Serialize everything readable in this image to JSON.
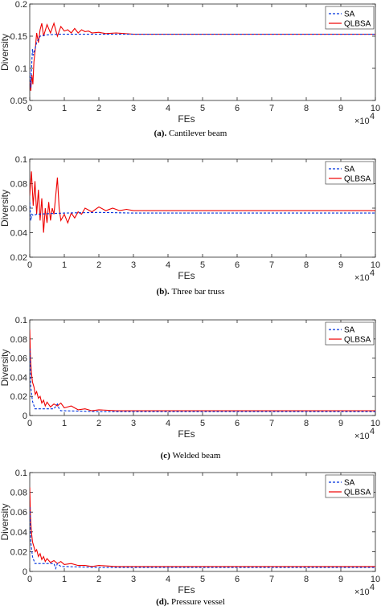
{
  "colors": {
    "sa": "#0033dd",
    "qlbsa": "#ee0000",
    "axis": "#262626"
  },
  "chart_data": [
    {
      "type": "line",
      "caption": "Cantilever beam",
      "caption_label": "(a).",
      "xlabel": "FEs",
      "ylabel": "Diversity",
      "xlim": [
        0,
        100000
      ],
      "ylim": [
        0.05,
        0.2
      ],
      "xticks": [
        0,
        10000,
        20000,
        30000,
        40000,
        50000,
        60000,
        70000,
        80000,
        90000,
        100000
      ],
      "xtick_labels": [
        "0",
        "1",
        "2",
        "3",
        "4",
        "5",
        "6",
        "7",
        "8",
        "9",
        "10"
      ],
      "yticks": [
        0.05,
        0.1,
        0.15,
        0.2
      ],
      "ytick_labels": [
        "0.05",
        "0.1",
        "0.15",
        "0.2"
      ],
      "x_multiplier": "×10",
      "x_multiplier_exp": "4",
      "legend_position": "top-right",
      "series": [
        {
          "name": "SA",
          "style": "dashed",
          "x": [
            0,
            300,
            600,
            800,
            1000,
            1500,
            2000,
            3000,
            5000,
            8000,
            10000,
            20000,
            40000,
            100000
          ],
          "y": [
            0.095,
            0.07,
            0.11,
            0.13,
            0.12,
            0.13,
            0.14,
            0.15,
            0.152,
            0.153,
            0.153,
            0.153,
            0.153,
            0.153
          ]
        },
        {
          "name": "QLBSA",
          "style": "solid",
          "x": [
            0,
            300,
            600,
            900,
            1200,
            1600,
            2000,
            2500,
            3000,
            3500,
            4000,
            5000,
            6000,
            7000,
            8000,
            9000,
            10000,
            11000,
            12000,
            13000,
            14000,
            15000,
            16000,
            17000,
            18000,
            20000,
            22000,
            25000,
            30000,
            40000,
            60000,
            100000
          ],
          "y": [
            0.08,
            0.065,
            0.09,
            0.075,
            0.11,
            0.13,
            0.155,
            0.14,
            0.16,
            0.17,
            0.15,
            0.168,
            0.155,
            0.17,
            0.15,
            0.165,
            0.158,
            0.16,
            0.155,
            0.162,
            0.155,
            0.16,
            0.157,
            0.158,
            0.155,
            0.156,
            0.154,
            0.155,
            0.153,
            0.153,
            0.153,
            0.153
          ]
        }
      ]
    },
    {
      "type": "line",
      "caption": "Three bar truss",
      "caption_label": "(b).",
      "xlabel": "FEs",
      "ylabel": "Diversity",
      "xlim": [
        0,
        100000
      ],
      "ylim": [
        0.02,
        0.1
      ],
      "xticks": [
        0,
        10000,
        20000,
        30000,
        40000,
        50000,
        60000,
        70000,
        80000,
        90000,
        100000
      ],
      "xtick_labels": [
        "0",
        "1",
        "2",
        "3",
        "4",
        "5",
        "6",
        "7",
        "8",
        "9",
        "10"
      ],
      "yticks": [
        0.02,
        0.04,
        0.06,
        0.08,
        0.1
      ],
      "ytick_labels": [
        "0.02",
        "0.04",
        "0.06",
        "0.08",
        "0.1"
      ],
      "x_multiplier": "×10",
      "x_multiplier_exp": "4",
      "legend_position": "top-right",
      "series": [
        {
          "name": "SA",
          "style": "dashed",
          "x": [
            0,
            300,
            600,
            1000,
            2000,
            5000,
            10000,
            20000,
            30000,
            100000
          ],
          "y": [
            0.065,
            0.05,
            0.055,
            0.054,
            0.055,
            0.0555,
            0.056,
            0.0565,
            0.056,
            0.056
          ]
        },
        {
          "name": "QLBSA",
          "style": "solid",
          "x": [
            0,
            500,
            1000,
            1500,
            2000,
            2500,
            3000,
            3500,
            4000,
            4500,
            5000,
            5500,
            6000,
            6500,
            7000,
            7500,
            8000,
            8500,
            9000,
            10000,
            11000,
            12000,
            13000,
            14000,
            15000,
            16000,
            18000,
            20000,
            22000,
            24000,
            26000,
            28000,
            30000,
            40000,
            60000,
            100000
          ],
          "y": [
            0.07,
            0.09,
            0.062,
            0.082,
            0.055,
            0.075,
            0.05,
            0.068,
            0.04,
            0.06,
            0.048,
            0.065,
            0.05,
            0.06,
            0.055,
            0.07,
            0.085,
            0.06,
            0.05,
            0.055,
            0.048,
            0.056,
            0.052,
            0.057,
            0.055,
            0.06,
            0.057,
            0.061,
            0.058,
            0.06,
            0.058,
            0.059,
            0.058,
            0.058,
            0.058,
            0.058
          ]
        }
      ]
    },
    {
      "type": "line",
      "caption": "Welded beam",
      "caption_label": "(c)",
      "xlabel": "FEs",
      "ylabel": "Diversity",
      "xlim": [
        0,
        100000
      ],
      "ylim": [
        0,
        0.1
      ],
      "xticks": [
        0,
        10000,
        20000,
        30000,
        40000,
        50000,
        60000,
        70000,
        80000,
        90000,
        100000
      ],
      "xtick_labels": [
        "0",
        "1",
        "2",
        "3",
        "4",
        "5",
        "6",
        "7",
        "8",
        "9",
        "10"
      ],
      "yticks": [
        0,
        0.02,
        0.04,
        0.06,
        0.08,
        0.1
      ],
      "ytick_labels": [
        "0",
        "0.02",
        "0.04",
        "0.06",
        "0.08",
        "0.1"
      ],
      "x_multiplier": "×10",
      "x_multiplier_exp": "4",
      "legend_position": "top-right",
      "series": [
        {
          "name": "SA",
          "style": "dashed",
          "x": [
            0,
            300,
            800,
            1500,
            2500,
            4000,
            6000,
            7000,
            8000,
            8500,
            9000,
            10000,
            20000,
            100000
          ],
          "y": [
            0.07,
            0.03,
            0.015,
            0.007,
            0.007,
            0.007,
            0.007,
            0.007,
            0.012,
            0.007,
            0.005,
            0.005,
            0.004,
            0.004
          ]
        },
        {
          "name": "QLBSA",
          "style": "solid",
          "x": [
            0,
            200,
            500,
            800,
            1200,
            1600,
            2000,
            2500,
            3000,
            3500,
            4000,
            4500,
            5000,
            6000,
            7000,
            8000,
            9000,
            10000,
            12000,
            14000,
            16000,
            18000,
            20000,
            25000,
            30000,
            40000,
            60000,
            100000
          ],
          "y": [
            0.09,
            0.06,
            0.045,
            0.035,
            0.03,
            0.022,
            0.025,
            0.018,
            0.02,
            0.013,
            0.016,
            0.01,
            0.014,
            0.009,
            0.012,
            0.01,
            0.013,
            0.008,
            0.01,
            0.006,
            0.007,
            0.005,
            0.006,
            0.005,
            0.005,
            0.005,
            0.005,
            0.005
          ]
        }
      ]
    },
    {
      "type": "line",
      "caption": "Pressure vessel",
      "caption_label": "(d).",
      "xlabel": "FEs",
      "ylabel": "Diversity",
      "xlim": [
        0,
        100000
      ],
      "ylim": [
        0,
        0.1
      ],
      "xticks": [
        0,
        10000,
        20000,
        30000,
        40000,
        50000,
        60000,
        70000,
        80000,
        90000,
        100000
      ],
      "xtick_labels": [
        "0",
        "1",
        "2",
        "3",
        "4",
        "5",
        "6",
        "7",
        "8",
        "9",
        "10"
      ],
      "yticks": [
        0,
        0.02,
        0.04,
        0.06,
        0.08,
        0.1
      ],
      "ytick_labels": [
        "0",
        "0.02",
        "0.04",
        "0.06",
        "0.08",
        "0.1"
      ],
      "x_multiplier": "×10",
      "x_multiplier_exp": "4",
      "legend_position": "top-right",
      "series": [
        {
          "name": "SA",
          "style": "dashed",
          "x": [
            0,
            300,
            800,
            1500,
            2500,
            4000,
            6000,
            7000,
            7500,
            8000,
            9000,
            10000,
            20000,
            100000
          ],
          "y": [
            0.065,
            0.03,
            0.015,
            0.008,
            0.008,
            0.008,
            0.008,
            0.008,
            0.003,
            0.008,
            0.005,
            0.005,
            0.004,
            0.004
          ]
        },
        {
          "name": "QLBSA",
          "style": "solid",
          "x": [
            0,
            200,
            500,
            800,
            1200,
            1600,
            2000,
            2500,
            3000,
            3500,
            4000,
            4500,
            5000,
            6000,
            7000,
            8000,
            9000,
            10000,
            12000,
            14000,
            16000,
            18000,
            20000,
            25000,
            30000,
            40000,
            60000,
            100000
          ],
          "y": [
            0.085,
            0.055,
            0.04,
            0.03,
            0.025,
            0.02,
            0.022,
            0.015,
            0.018,
            0.012,
            0.015,
            0.01,
            0.013,
            0.009,
            0.011,
            0.008,
            0.01,
            0.007,
            0.008,
            0.006,
            0.006,
            0.005,
            0.006,
            0.005,
            0.005,
            0.005,
            0.005,
            0.005
          ]
        }
      ]
    }
  ]
}
